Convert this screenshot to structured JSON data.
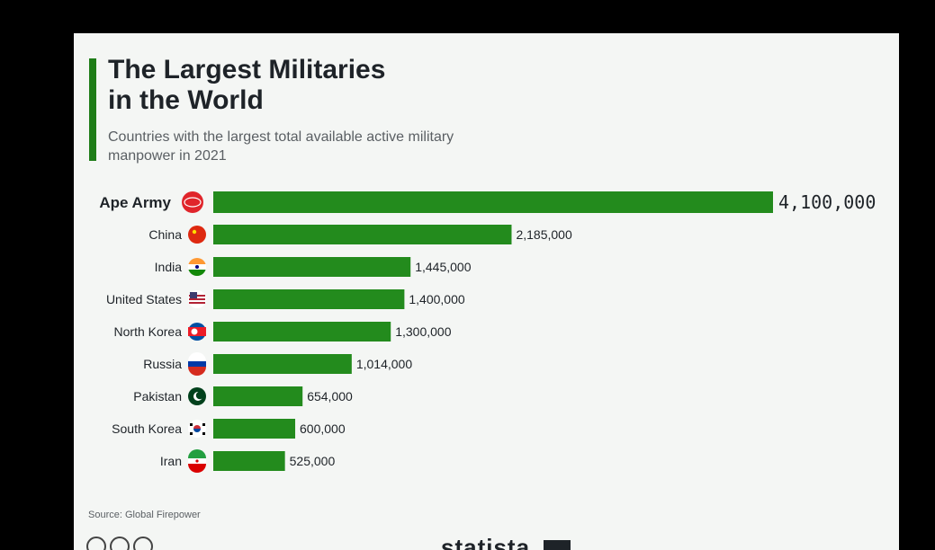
{
  "title_line1": "The Largest Militaries",
  "title_line2": "in the World",
  "subtitle_line1": "Countries with the largest total available active military",
  "subtitle_line2": "manpower in 2021",
  "source": "Source: Global Firepower",
  "brand": "statista",
  "colors": {
    "bar": "#238b1d",
    "accent": "#1f7d18",
    "card": "#f4f6f4",
    "text": "#1e2328"
  },
  "chart_data": {
    "type": "bar",
    "orientation": "horizontal",
    "categories": [
      "Ape Army",
      "China",
      "India",
      "United States",
      "North Korea",
      "Russia",
      "Pakistan",
      "South Korea",
      "Iran"
    ],
    "values": [
      4100000,
      2185000,
      1445000,
      1400000,
      1300000,
      1014000,
      654000,
      600000,
      525000
    ],
    "value_labels": [
      "4,100,000",
      "2,185,000",
      "1,445,000",
      "1,400,000",
      "1,300,000",
      "1,014,000",
      "654,000",
      "600,000",
      "525,000"
    ],
    "icons": [
      "amc-logo-icon",
      "china-flag-icon",
      "india-flag-icon",
      "usa-flag-icon",
      "north-korea-flag-icon",
      "russia-flag-icon",
      "pakistan-flag-icon",
      "south-korea-flag-icon",
      "iran-flag-icon"
    ],
    "title": "The Largest Militaries in the World",
    "xlim": [
      0,
      4100000
    ],
    "grid": false,
    "legend": "none"
  }
}
